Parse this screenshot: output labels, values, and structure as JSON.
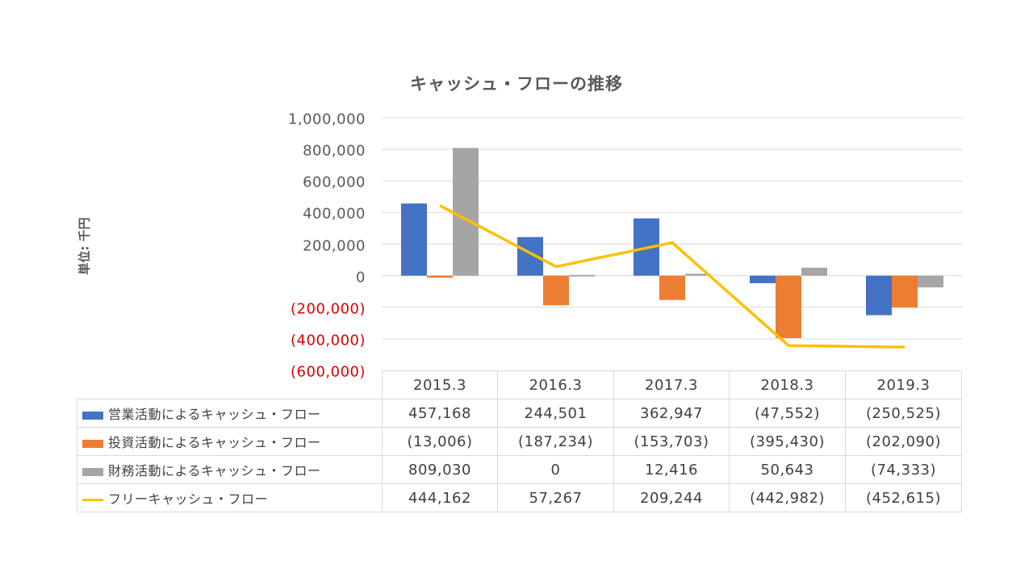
{
  "chart_data": {
    "type": "bar+line",
    "title": "キャッシュ・フローの推移",
    "ylabel": "単位: 千円",
    "ylim": [
      -600000,
      1000000
    ],
    "ytick_values": [
      1000000,
      800000,
      600000,
      400000,
      200000,
      0,
      -200000,
      -400000,
      -600000
    ],
    "ytick_labels": [
      "1,000,000",
      "800,000",
      "600,000",
      "400,000",
      "200,000",
      "0",
      "(200,000)",
      "(400,000)",
      "(600,000)"
    ],
    "negative_tick_color": "#e00000",
    "grid": true,
    "categories": [
      "2015.3",
      "2016.3",
      "2017.3",
      "2018.3",
      "2019.3"
    ],
    "series": [
      {
        "name": "営業活動によるキャッシュ・フロー",
        "type": "bar",
        "color": "#4472c4",
        "values": [
          457168,
          244501,
          362947,
          -47552,
          -250525
        ],
        "labels": [
          "457,168",
          "244,501",
          "362,947",
          "(47,552)",
          "(250,525)"
        ]
      },
      {
        "name": "投資活動によるキャッシュ・フロー",
        "type": "bar",
        "color": "#ed7d31",
        "values": [
          -13006,
          -187234,
          -153703,
          -395430,
          -202090
        ],
        "labels": [
          "(13,006)",
          "(187,234)",
          "(153,703)",
          "(395,430)",
          "(202,090)"
        ]
      },
      {
        "name": "財務活動によるキャッシュ・フロー",
        "type": "bar",
        "color": "#a5a5a5",
        "values": [
          809030,
          0,
          12416,
          50643,
          -74333
        ],
        "labels": [
          "809,030",
          "0",
          "12,416",
          "50,643",
          "(74,333)"
        ]
      },
      {
        "name": "フリーキャッシュ・フロー",
        "type": "line",
        "color": "#ffc000",
        "values": [
          444162,
          57267,
          209244,
          -442982,
          -452615
        ],
        "labels": [
          "444,162",
          "57,267",
          "209,244",
          "(442,982)",
          "(452,615)"
        ]
      }
    ]
  }
}
